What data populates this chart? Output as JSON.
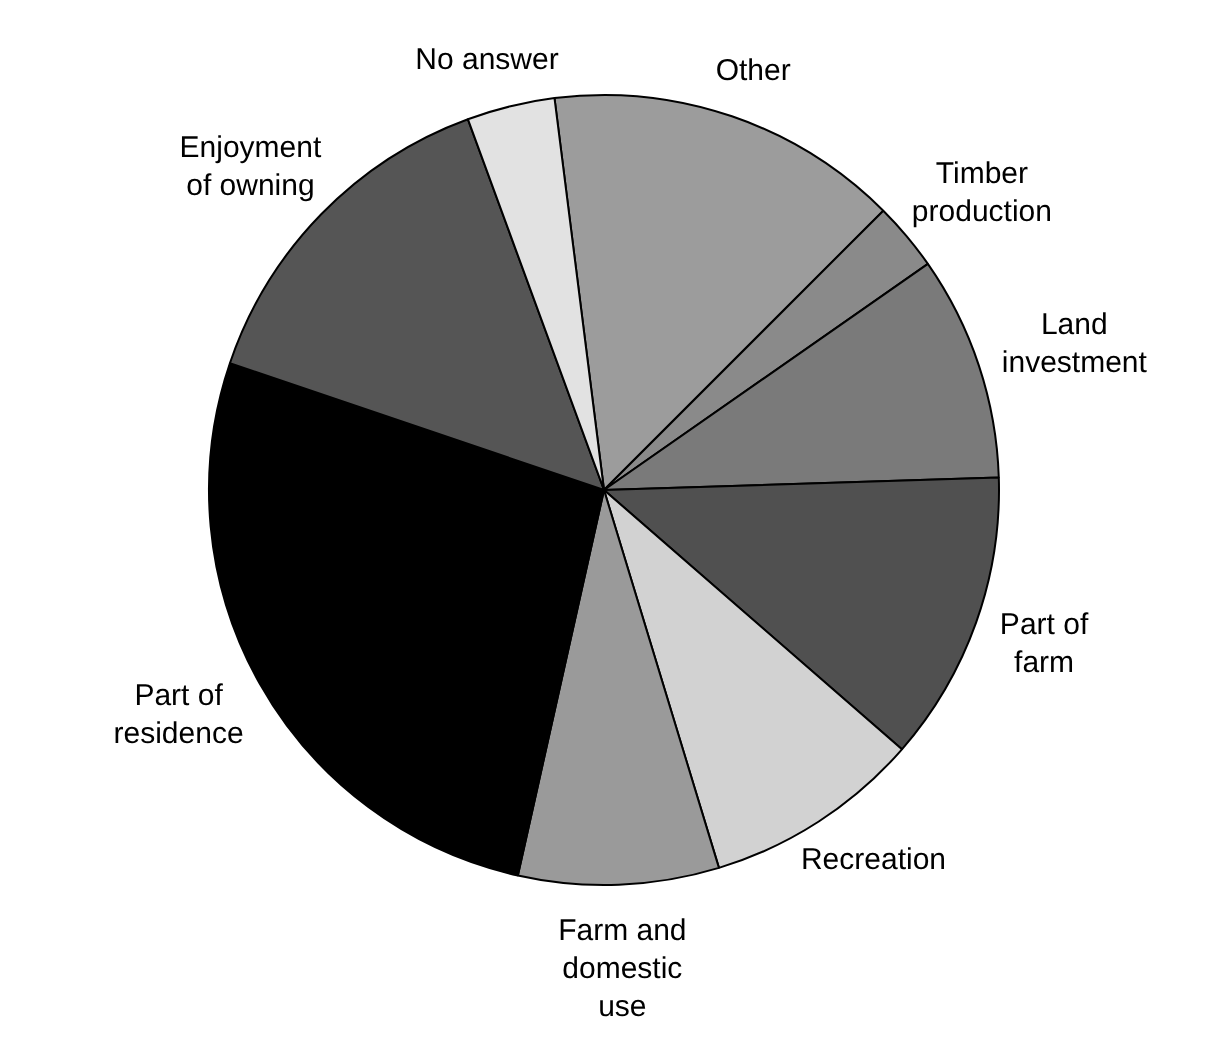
{
  "chart_data": {
    "type": "pie",
    "categories": [
      "Other",
      "Timber production",
      "Land investment",
      "Part of farm",
      "Recreation",
      "Farm and domestic use",
      "Part of residence",
      "Enjoyment of owning",
      "No answer"
    ],
    "values": [
      14.5,
      2.8,
      9.2,
      11.9,
      8.9,
      8.2,
      26.7,
      14.2,
      3.6
    ],
    "colors": [
      "#9c9c9c",
      "#8a8a8a",
      "#7a7a7a",
      "#505050",
      "#d2d2d2",
      "#9a9a9a",
      "#000000",
      "#555555",
      "#e2e2e2"
    ],
    "legend": false
  }
}
